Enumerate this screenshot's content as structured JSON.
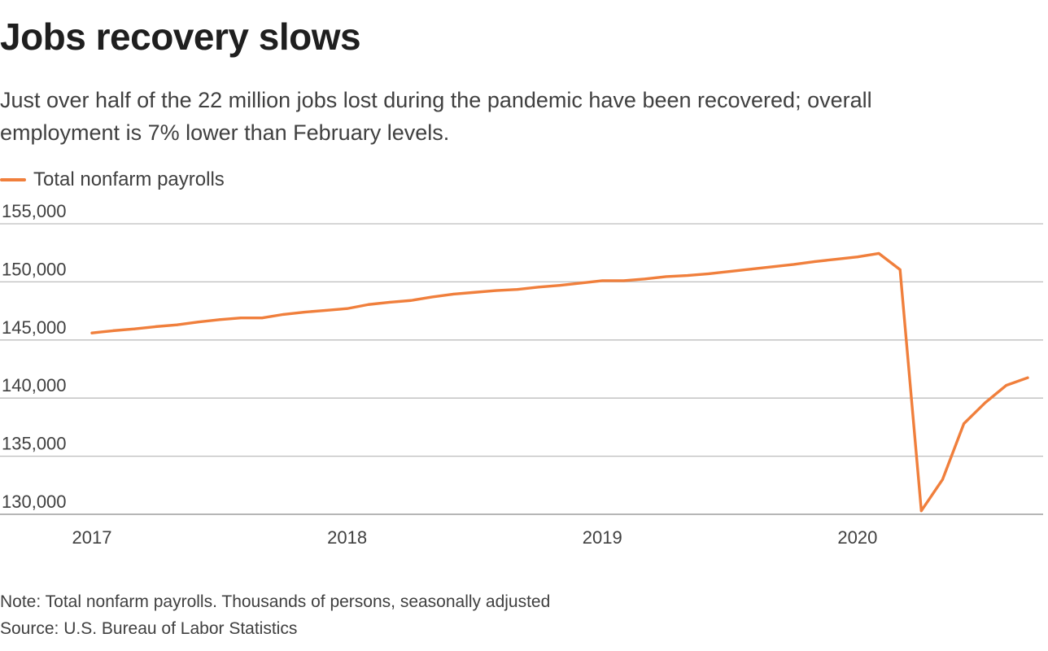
{
  "header": {
    "title": "Jobs recovery slows",
    "subtitle": "Just over half of the 22 million jobs lost during the pandemic have been recovered; overall employment is 7% lower than February levels."
  },
  "footer": {
    "note": "Note: Total nonfarm payrolls. Thousands of persons, seasonally adjusted",
    "source": "Source: U.S. Bureau of Labor Statistics"
  },
  "colors": {
    "series": "#f07f3c",
    "gridline": "#bdbdbd",
    "text": "#404040"
  },
  "chart_data": {
    "type": "line",
    "title": "Jobs recovery slows",
    "xlabel": "",
    "ylabel": "",
    "ylim": [
      130000,
      155000
    ],
    "xlim": [
      "2017-01",
      "2020-09"
    ],
    "yticks": [
      130000,
      135000,
      140000,
      145000,
      150000,
      155000
    ],
    "ytick_labels": [
      "130,000",
      "135,000",
      "140,000",
      "145,000",
      "150,000",
      "155,000"
    ],
    "xtick_labels": [
      "2017",
      "2018",
      "2019",
      "2020"
    ],
    "grid": true,
    "legend": "top-left",
    "series": [
      {
        "name": "Total nonfarm payrolls",
        "x": [
          "2017-01",
          "2017-02",
          "2017-03",
          "2017-04",
          "2017-05",
          "2017-06",
          "2017-07",
          "2017-08",
          "2017-09",
          "2017-10",
          "2017-11",
          "2017-12",
          "2018-01",
          "2018-02",
          "2018-03",
          "2018-04",
          "2018-05",
          "2018-06",
          "2018-07",
          "2018-08",
          "2018-09",
          "2018-10",
          "2018-11",
          "2018-12",
          "2019-01",
          "2019-02",
          "2019-03",
          "2019-04",
          "2019-05",
          "2019-06",
          "2019-07",
          "2019-08",
          "2019-09",
          "2019-10",
          "2019-11",
          "2019-12",
          "2020-01",
          "2020-02",
          "2020-03",
          "2020-04",
          "2020-05",
          "2020-06",
          "2020-07",
          "2020-08",
          "2020-09"
        ],
        "values": [
          145600,
          145800,
          145950,
          146150,
          146300,
          146550,
          146750,
          146900,
          146900,
          147200,
          147400,
          147550,
          147700,
          148050,
          148250,
          148400,
          148700,
          148950,
          149100,
          149250,
          149350,
          149550,
          149700,
          149900,
          150100,
          150100,
          150250,
          150450,
          150550,
          150700,
          150900,
          151100,
          151300,
          151500,
          151750,
          151950,
          152150,
          152450,
          151050,
          130300,
          133000,
          137800,
          139600,
          141100,
          141750
        ]
      }
    ]
  }
}
